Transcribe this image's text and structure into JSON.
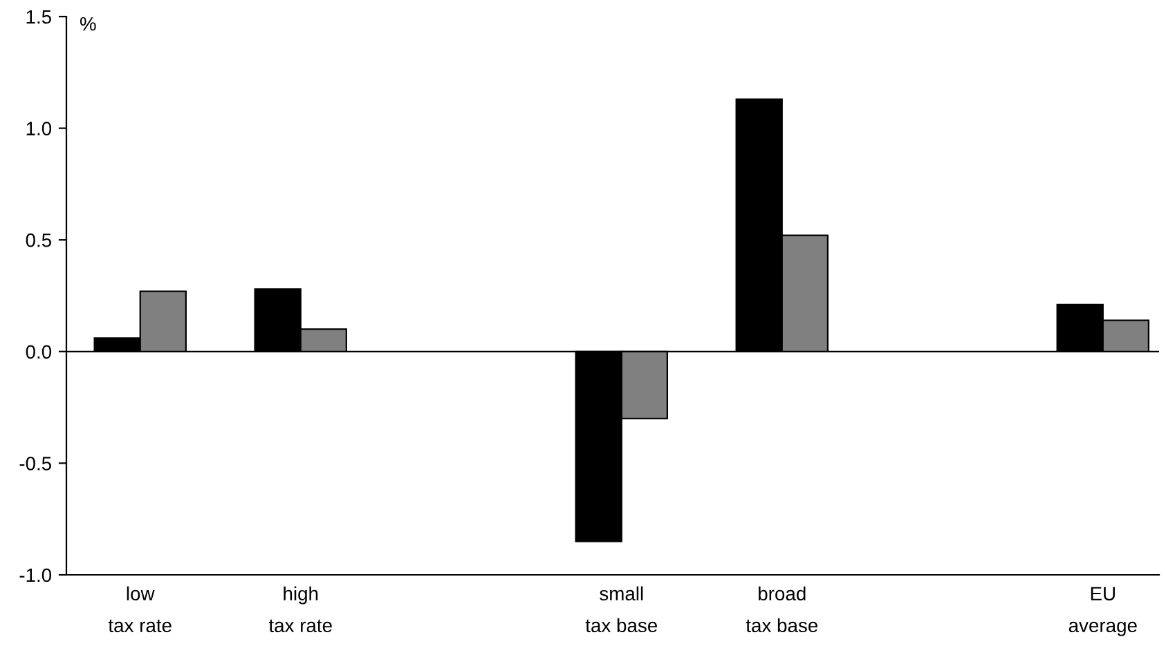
{
  "chart_data": {
    "type": "bar",
    "ylabel": "%",
    "categories": [
      "low\ntax rate",
      "high\ntax rate",
      null,
      "small\ntax base",
      "broad\ntax base",
      null,
      "EU\naverage"
    ],
    "series": [
      {
        "color": "#000000",
        "values": [
          0.06,
          0.28,
          null,
          -0.85,
          1.13,
          null,
          0.21
        ]
      },
      {
        "color": "#808080",
        "values": [
          0.27,
          0.1,
          null,
          -0.3,
          0.52,
          null,
          0.14
        ]
      }
    ],
    "ylim": [
      -1.0,
      1.5
    ],
    "yticks": [
      {
        "value": -1.0,
        "label": "-1.0"
      },
      {
        "value": -0.5,
        "label": "-0.5"
      },
      {
        "value": 0.0,
        "label": "0.0"
      },
      {
        "value": 0.5,
        "label": "0.5"
      },
      {
        "value": 1.0,
        "label": "1.0"
      },
      {
        "value": 1.5,
        "label": "1.5"
      }
    ],
    "ref_lines": [
      {
        "axis": "y",
        "value": 0,
        "color": "#000000"
      }
    ],
    "grid": false,
    "legend": false
  }
}
